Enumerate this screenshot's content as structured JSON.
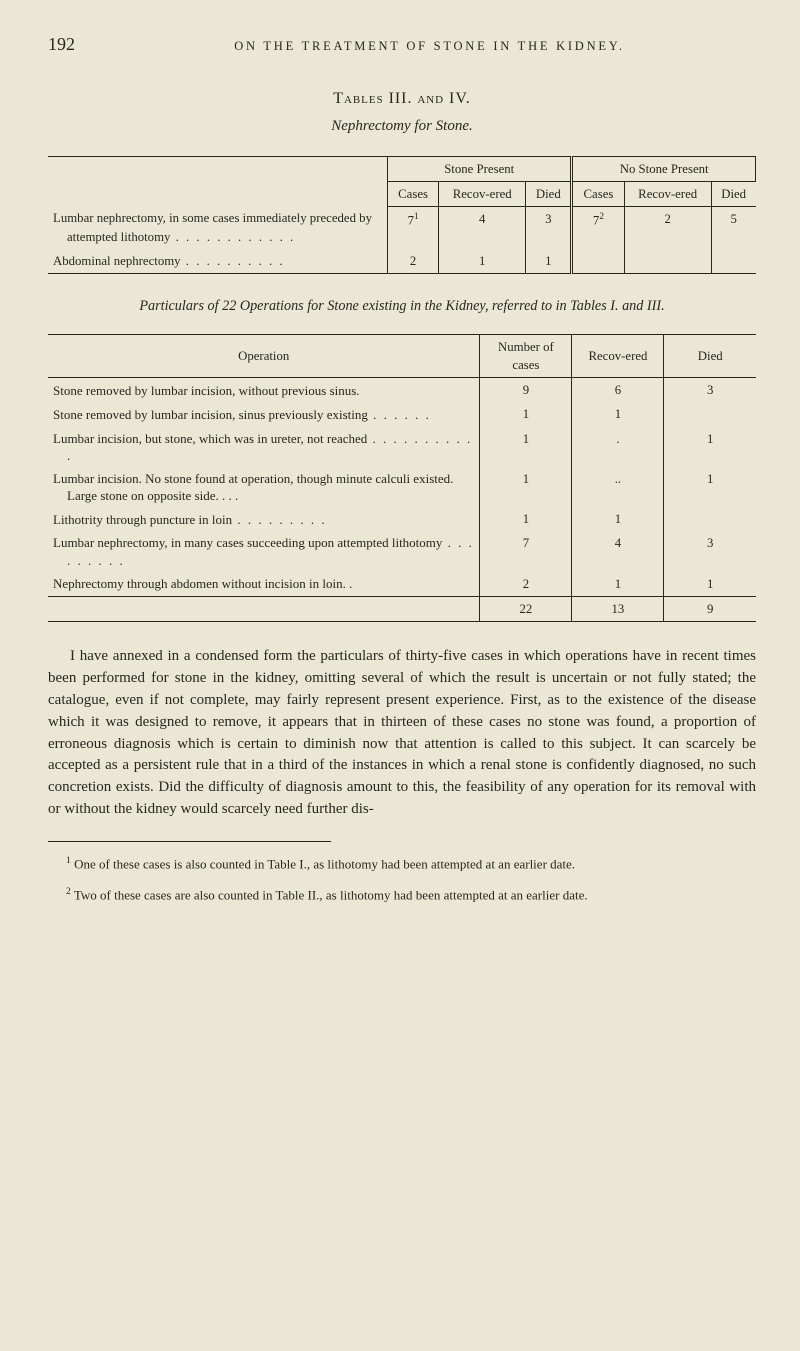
{
  "page_number": "192",
  "running_head": "ON THE TREATMENT OF STONE IN THE KIDNEY.",
  "tables_heading": "Tables III. and IV.",
  "subtitle": "Nephrectomy for Stone.",
  "t1": {
    "section_heads": [
      "Stone Present",
      "No Stone Present"
    ],
    "col_heads": [
      "Cases",
      "Recov-ered",
      "Died",
      "Cases",
      "Recov-ered",
      "Died"
    ],
    "stub1a": "Lumbar nephrectomy, in some cases immediately preceded by attempted lithotomy",
    "row1": {
      "cases_sp": "7",
      "cases_sp_sup": "1",
      "recov_sp": "4",
      "died_sp": "3",
      "cases_np": "7",
      "cases_np_sup": "2",
      "recov_np": "2",
      "died_np": "5"
    },
    "stub2": "Abdominal nephrectomy",
    "row2": {
      "cases_sp": "2",
      "recov_sp": "1",
      "died_sp": "1",
      "cases_np": "",
      "recov_np": "",
      "died_np": ""
    }
  },
  "particulars": "Particulars of 22 Operations for Stone existing in the Kidney, referred to in Tables I. and III.",
  "t2": {
    "col_heads": [
      "Operation",
      "Number of cases",
      "Recov-ered",
      "Died"
    ],
    "rows": [
      {
        "op": "Stone removed by lumbar incision, without previous sinus.",
        "n": "9",
        "r": "6",
        "d": "3"
      },
      {
        "op": "Stone removed by lumbar incision, sinus previously existing",
        "n": "1",
        "r": "1",
        "d": ""
      },
      {
        "op": "Lumbar incision, but stone, which was in ureter, not reached",
        "n": "1",
        "r": ".",
        "d": "1"
      },
      {
        "op": "Lumbar incision. No stone found at operation, though minute calculi existed. Large stone on opposite side. . . .",
        "n": "1",
        "r": "..",
        "d": "1"
      },
      {
        "op": "Lithotrity through puncture in loin",
        "n": "1",
        "r": "1",
        "d": ""
      },
      {
        "op": "Lumbar nephrectomy, in many cases succeeding upon attempted lithotomy",
        "n": "7",
        "r": "4",
        "d": "3"
      },
      {
        "op": "Nephrectomy through abdomen without incision in loin. .",
        "n": "2",
        "r": "1",
        "d": "1"
      }
    ],
    "totals": {
      "n": "22",
      "r": "13",
      "d": "9"
    }
  },
  "body_text": "I have annexed in a condensed form the particulars of thirty-five cases in which operations have in recent times been performed for stone in the kidney, omitting several of which the result is uncertain or not fully stated; the catalogue, even if not complete, may fairly represent present experience. First, as to the existence of the disease which it was designed to remove, it appears that in thirteen of these cases no stone was found, a proportion of erroneous diagnosis which is certain to diminish now that attention is called to this subject. It can scarcely be accepted as a persistent rule that in a third of the instances in which a renal stone is confidently diagnosed, no such concretion exists. Did the difficulty of diagnosis amount to this, the feasibility of any operation for its removal with or without the kidney would scarcely need further dis-",
  "fn1": "One of these cases is also counted in Table I., as lithotomy had been attempted at an earlier date.",
  "fn2": "Two of these cases are also counted in Table II., as lithotomy had been attempted at an earlier date."
}
